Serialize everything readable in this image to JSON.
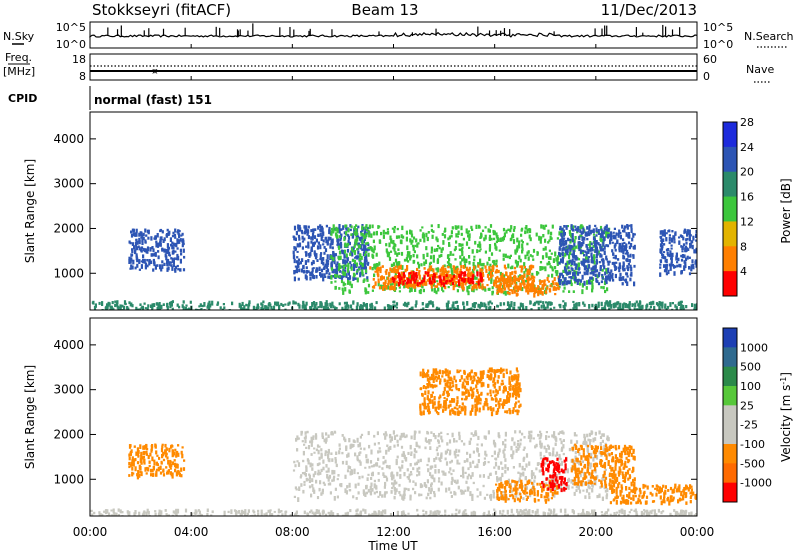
{
  "header": {
    "title": "Stokkseyri (fitACF)",
    "beam": "Beam 13",
    "date": "11/Dec/2013"
  },
  "noise_panel": {
    "left_label": "N.Sky",
    "right_label": "N.Search",
    "tick_top_left": "10^5",
    "tick_bottom_left": "10^0",
    "tick_top_right": "10^5",
    "tick_bottom_right": "10^0"
  },
  "freq_panel": {
    "left_label_1": "Freq.",
    "left_label_2": "[MHz]",
    "right_label": "Nave",
    "tick_top_left": "18",
    "tick_bottom_left": "8",
    "tick_top_right": "60",
    "tick_bottom_right": "0"
  },
  "cpid_panel": {
    "label": "CPID",
    "mode": "normal (fast) 151"
  },
  "chart_data": [
    {
      "type": "heatmap",
      "name": "power",
      "ylabel": "Slant Range [km]",
      "ylim": [
        180,
        4600
      ],
      "yticks": [
        "1000",
        "2000",
        "3000",
        "4000"
      ],
      "colorbar_label": "Power [dB]",
      "colorbar_ticks": [
        "4",
        "8",
        "12",
        "16",
        "20",
        "24",
        "28"
      ],
      "colorbar_colors": [
        "#1d2bdc",
        "#2d55b4",
        "#2b8a6a",
        "#3cc63c",
        "#e3b400",
        "#ff7f00",
        "#ff0000"
      ],
      "blobs": [
        {
          "t0": 8.0,
          "t1": 11.0,
          "r0": 900,
          "r1": 2100,
          "color": "#2d55b4"
        },
        {
          "t0": 9.5,
          "t1": 20.5,
          "r0": 600,
          "r1": 2100,
          "color": "#3cc63c"
        },
        {
          "t0": 11.0,
          "t1": 17.5,
          "r0": 700,
          "r1": 1200,
          "color": "#ff7f00"
        },
        {
          "t0": 11.8,
          "t1": 15.5,
          "r0": 800,
          "r1": 1050,
          "color": "#ff0000"
        },
        {
          "t0": 16.0,
          "t1": 18.5,
          "r0": 550,
          "r1": 950,
          "color": "#ff7f00"
        },
        {
          "t0": 18.5,
          "t1": 21.5,
          "r0": 800,
          "r1": 2100,
          "color": "#2d55b4"
        },
        {
          "t0": 1.5,
          "t1": 3.7,
          "r0": 1100,
          "r1": 2000,
          "color": "#2d55b4"
        },
        {
          "t0": 22.5,
          "t1": 24.0,
          "r0": 1000,
          "r1": 2000,
          "color": "#2d55b4"
        },
        {
          "t0": 0.0,
          "t1": 24.0,
          "r0": 200,
          "r1": 400,
          "color": "#2b8a6a"
        }
      ]
    },
    {
      "type": "heatmap",
      "name": "velocity",
      "ylabel": "Slant Range [km]",
      "ylim": [
        180,
        4600
      ],
      "yticks": [
        "1000",
        "2000",
        "3000",
        "4000"
      ],
      "colorbar_label": "Velocity [m s^-1]",
      "colorbar_ticks": [
        "1000",
        "500",
        "100",
        "25",
        "-25",
        "-100",
        "-500",
        "-1000"
      ],
      "colorbar_colors": [
        "#1d3fb4",
        "#2f6a8f",
        "#2b8a4a",
        "#57c83a",
        "#c8c8c0",
        "#c8c8c0",
        "#ff8a00",
        "#ff6a00",
        "#ff0000"
      ],
      "blobs": [
        {
          "t0": 8.0,
          "t1": 20.5,
          "r0": 600,
          "r1": 2100,
          "color": "#c8c8c0"
        },
        {
          "t0": 16.0,
          "t1": 18.5,
          "r0": 550,
          "r1": 1000,
          "color": "#ff8a00"
        },
        {
          "t0": 17.8,
          "t1": 18.8,
          "r0": 800,
          "r1": 1500,
          "color": "#ff0000"
        },
        {
          "t0": 19.0,
          "t1": 21.5,
          "r0": 900,
          "r1": 1800,
          "color": "#ff8a00"
        },
        {
          "t0": 20.5,
          "t1": 24.0,
          "r0": 500,
          "r1": 900,
          "color": "#ff8a00"
        },
        {
          "t0": 1.5,
          "t1": 3.7,
          "r0": 1100,
          "r1": 1800,
          "color": "#ff8a00"
        },
        {
          "t0": 13.0,
          "t1": 17.0,
          "r0": 2500,
          "r1": 3500,
          "color": "#ff8a00"
        },
        {
          "t0": 0.0,
          "t1": 24.0,
          "r0": 200,
          "r1": 350,
          "color": "#c8c8c0"
        }
      ]
    }
  ],
  "xaxis": {
    "label": "Time UT",
    "ticks": [
      "00:00",
      "04:00",
      "08:00",
      "12:00",
      "16:00",
      "20:00",
      "00:00"
    ],
    "xlim": [
      0,
      24
    ]
  }
}
